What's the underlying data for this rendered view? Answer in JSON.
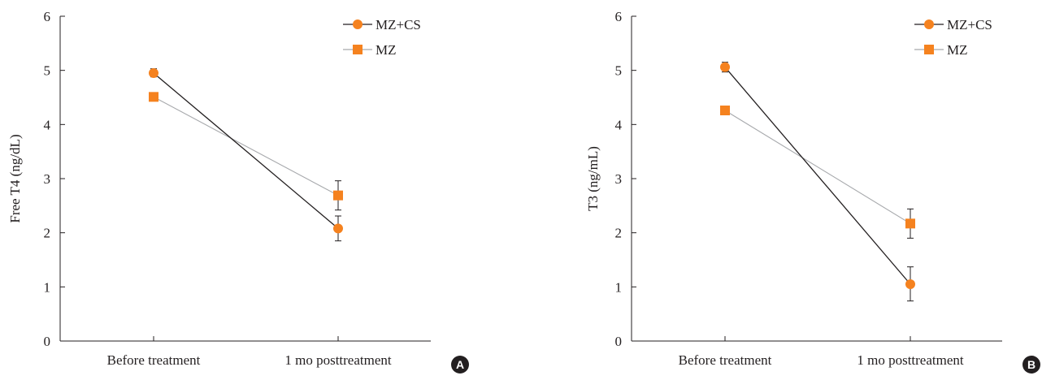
{
  "chart_data": [
    {
      "type": "line",
      "panel_label": "A",
      "ylabel": "Free T4 (ng/dL)",
      "xlabel": "",
      "categories": [
        "Before treatment",
        "1 mo posttreatment"
      ],
      "ylim": [
        0,
        6
      ],
      "yticks": [
        "0",
        "1",
        "2",
        "3",
        "4",
        "5",
        "6"
      ],
      "grid": false,
      "legend_position": "top-right",
      "series": [
        {
          "name": "MZ+CS",
          "marker": "circle",
          "line_color": "#231f20",
          "marker_color": "#f5821f",
          "values": [
            4.95,
            2.08
          ],
          "error_low": [
            4.88,
            1.85
          ],
          "error_high": [
            5.03,
            2.31
          ]
        },
        {
          "name": "MZ",
          "marker": "square",
          "line_color": "#a7a9ac",
          "marker_color": "#f5821f",
          "values": [
            4.51,
            2.69
          ],
          "error_low": [
            4.51,
            2.42
          ],
          "error_high": [
            4.51,
            2.96
          ]
        }
      ]
    },
    {
      "type": "line",
      "panel_label": "B",
      "ylabel": "T3 (ng/mL)",
      "xlabel": "",
      "categories": [
        "Before treatment",
        "1 mo posttreatment"
      ],
      "ylim": [
        0,
        6
      ],
      "yticks": [
        "0",
        "1",
        "2",
        "3",
        "4",
        "5",
        "6"
      ],
      "grid": false,
      "legend_position": "top-right",
      "series": [
        {
          "name": "MZ+CS",
          "marker": "circle",
          "line_color": "#231f20",
          "marker_color": "#f5821f",
          "values": [
            5.06,
            1.05
          ],
          "error_low": [
            4.97,
            0.74
          ],
          "error_high": [
            5.15,
            1.37
          ]
        },
        {
          "name": "MZ",
          "marker": "square",
          "line_color": "#a7a9ac",
          "marker_color": "#f5821f",
          "values": [
            4.26,
            2.17
          ],
          "error_low": [
            4.26,
            1.9
          ],
          "error_high": [
            4.26,
            2.44
          ]
        }
      ]
    }
  ],
  "colors": {
    "accent": "#f5821f",
    "axis": "#231f20",
    "series2_line": "#a7a9ac",
    "badge": "#231f20"
  }
}
